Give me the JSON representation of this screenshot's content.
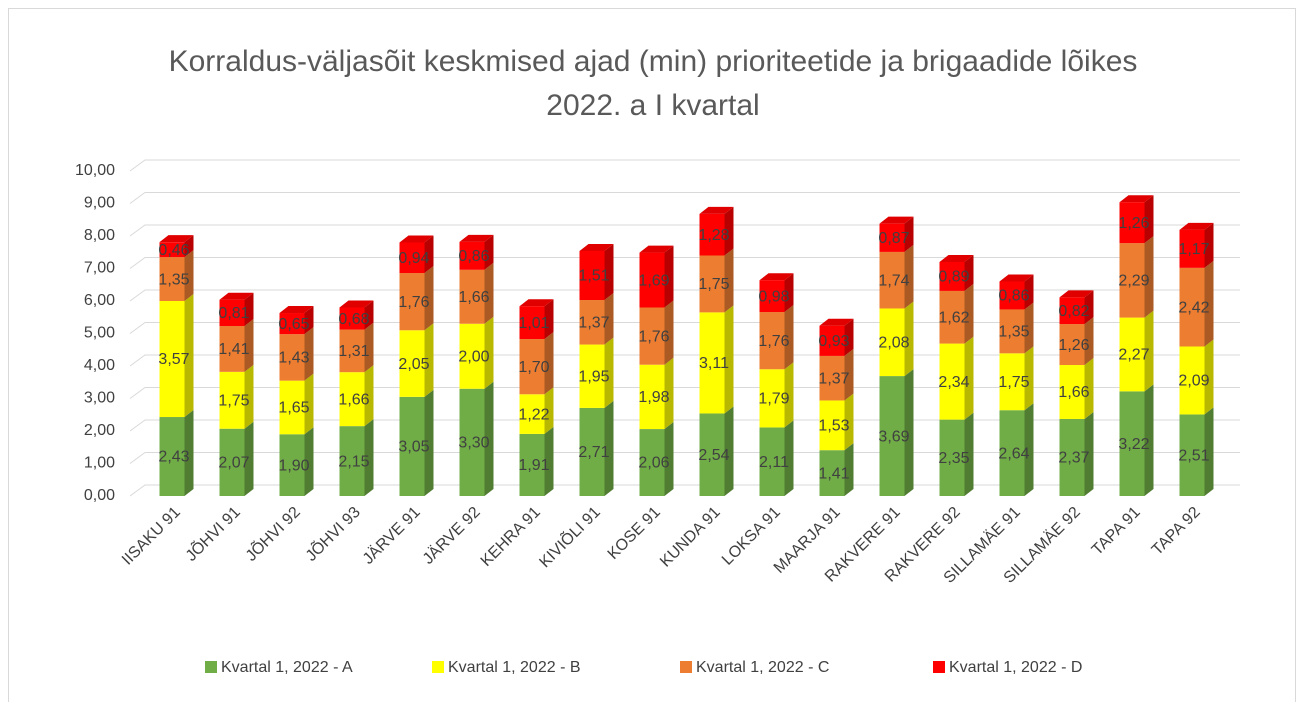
{
  "chart_data": {
    "type": "bar3d_stacked",
    "title": "Korraldus-väljasõit keskmised ajad (min) prioriteetide ja brigaadide lõikes 2022. a I kvartal",
    "categories": [
      "IISAKU 91",
      "JÕHVI 91",
      "JÕHVI 92",
      "JÕHVI 93",
      "JÄRVE 91",
      "JÄRVE 92",
      "KEHRA 91",
      "KIVIÕLI 91",
      "KOSE 91",
      "KUNDA 91",
      "LOKSA 91",
      "MAARJA 91",
      "RAKVERE 91",
      "RAKVERE 92",
      "SILLAMÄE 91",
      "SILLAMÄE 92",
      "TAPA 91",
      "TAPA 92"
    ],
    "series": [
      {
        "name": "Kvartal 1, 2022 - A",
        "color": "#70ad47",
        "values": [
          2.43,
          2.07,
          1.9,
          2.15,
          3.05,
          3.3,
          1.91,
          2.71,
          2.06,
          2.54,
          2.11,
          1.41,
          3.69,
          2.35,
          2.64,
          2.37,
          3.22,
          2.51
        ],
        "value_labels": [
          "2,43",
          "2,07",
          "1,90",
          "2,15",
          "3,05",
          "3,30",
          "1,91",
          "2,71",
          "2,06",
          "2,54",
          "2,11",
          "1,41",
          "3,69",
          "2,35",
          "2,64",
          "2,37",
          "3,22",
          "2,51"
        ]
      },
      {
        "name": "Kvartal 1, 2022 - B",
        "color": "#ffff00",
        "values": [
          3.57,
          1.75,
          1.65,
          1.66,
          2.05,
          2.0,
          1.22,
          1.95,
          1.98,
          3.11,
          1.79,
          1.53,
          2.08,
          2.34,
          1.75,
          1.66,
          2.27,
          2.09
        ],
        "value_labels": [
          "3,57",
          "1,75",
          "1,65",
          "1,66",
          "2,05",
          "2,00",
          "1,22",
          "1,95",
          "1,98",
          "3,11",
          "1,79",
          "1,53",
          "2,08",
          "2,34",
          "1,75",
          "1,66",
          "2,27",
          "2,09"
        ]
      },
      {
        "name": "Kvartal 1, 2022 - C",
        "color": "#ed7d31",
        "values": [
          1.35,
          1.41,
          1.43,
          1.31,
          1.76,
          1.66,
          1.7,
          1.37,
          1.76,
          1.75,
          1.76,
          1.37,
          1.74,
          1.62,
          1.35,
          1.26,
          2.29,
          2.42
        ],
        "value_labels": [
          "1,35",
          "1,41",
          "1,43",
          "1,31",
          "1,76",
          "1,66",
          "1,70",
          "1,37",
          "1,76",
          "1,75",
          "1,76",
          "1,37",
          "1,74",
          "1,62",
          "1,35",
          "1,26",
          "2,29",
          "2,42"
        ]
      },
      {
        "name": "Kvartal 1, 2022 - D",
        "color": "#ff0000",
        "values": [
          0.46,
          0.81,
          0.65,
          0.68,
          0.94,
          0.86,
          1.01,
          1.51,
          1.69,
          1.28,
          0.98,
          0.93,
          0.87,
          0.89,
          0.86,
          0.82,
          1.26,
          1.17
        ],
        "value_labels": [
          "0,46",
          "0,81",
          "0,65",
          "0,68",
          "0,94",
          "0,86",
          "1,01",
          "1,51",
          "1,69",
          "1,28",
          "0,98",
          "0,93",
          "0,87",
          "0,89",
          "0,86",
          "0,82",
          "1,26",
          "1,17"
        ]
      }
    ],
    "ylim": [
      0,
      10
    ],
    "yticks": [
      {
        "value": 0,
        "label": "0,00"
      },
      {
        "value": 1,
        "label": "1,00"
      },
      {
        "value": 2,
        "label": "2,00"
      },
      {
        "value": 3,
        "label": "3,00"
      },
      {
        "value": 4,
        "label": "4,00"
      },
      {
        "value": 5,
        "label": "5,00"
      },
      {
        "value": 6,
        "label": "6,00"
      },
      {
        "value": 7,
        "label": "7,00"
      },
      {
        "value": 8,
        "label": "8,00"
      },
      {
        "value": 9,
        "label": "9,00"
      },
      {
        "value": 10,
        "label": "10,00"
      }
    ],
    "grid": true,
    "legend": "bottom"
  }
}
